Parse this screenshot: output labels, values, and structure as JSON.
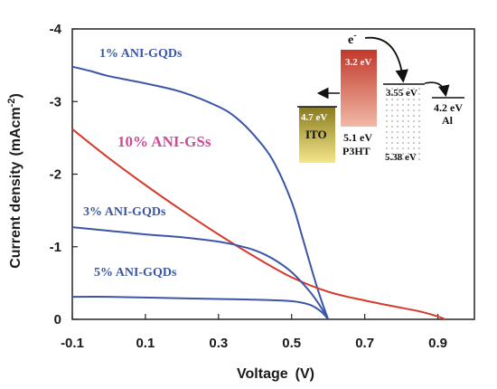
{
  "chart_data": {
    "type": "line",
    "xlabel": "Voltage",
    "xunit": "(V)",
    "ylabel": "Current density",
    "yunit": "(mAcm",
    "yunit_sup": "-2",
    "yunit_close": ")",
    "xlim": [
      -0.1,
      1.0
    ],
    "ylim": [
      0,
      -4
    ],
    "x_ticks": [
      -0.1,
      0.1,
      0.3,
      0.5,
      0.7,
      0.9
    ],
    "x_tick_labels": [
      "-0.1",
      "0.1",
      "0.3",
      "0.5",
      "0.7",
      "0.9"
    ],
    "y_ticks": [
      0,
      -1,
      -2,
      -3,
      -4
    ],
    "y_tick_labels": [
      "0",
      "-1",
      "-2",
      "-3",
      "-4"
    ],
    "series": [
      {
        "name": "1% ANI-GQDs",
        "color": "#3a56a6",
        "x": [
          -0.1,
          -0.05,
          0.0,
          0.1,
          0.2,
          0.3,
          0.35,
          0.4,
          0.45,
          0.5,
          0.53,
          0.56,
          0.58,
          0.6
        ],
        "y": [
          -3.48,
          -3.42,
          -3.35,
          -3.25,
          -3.13,
          -2.93,
          -2.77,
          -2.52,
          -2.18,
          -1.62,
          -1.12,
          -0.6,
          -0.28,
          0.0
        ]
      },
      {
        "name": "10% ANI-GSs",
        "color": "#d63a2c",
        "x": [
          -0.1,
          0.0,
          0.1,
          0.2,
          0.3,
          0.4,
          0.5,
          0.6,
          0.7,
          0.8,
          0.85,
          0.9,
          0.92
        ],
        "y": [
          -2.62,
          -2.22,
          -1.85,
          -1.5,
          -1.17,
          -0.86,
          -0.58,
          -0.38,
          -0.26,
          -0.16,
          -0.11,
          -0.04,
          0.0
        ]
      },
      {
        "name": "3% ANI-GQDs",
        "color": "#3a56a6",
        "x": [
          -0.1,
          0.0,
          0.1,
          0.2,
          0.3,
          0.35,
          0.4,
          0.45,
          0.5,
          0.55,
          0.58,
          0.6
        ],
        "y": [
          -1.27,
          -1.22,
          -1.17,
          -1.13,
          -1.07,
          -1.02,
          -0.95,
          -0.83,
          -0.65,
          -0.38,
          -0.17,
          0.0
        ]
      },
      {
        "name": "5% ANI-GQDs",
        "color": "#3a56a6",
        "x": [
          -0.1,
          0.0,
          0.1,
          0.2,
          0.3,
          0.4,
          0.5,
          0.55,
          0.58,
          0.6
        ],
        "y": [
          -0.31,
          -0.31,
          -0.3,
          -0.29,
          -0.28,
          -0.27,
          -0.25,
          -0.2,
          -0.11,
          0.0
        ]
      }
    ],
    "annotations": [
      {
        "text": "1% ANI-GQDs",
        "color": "#3a56a6"
      },
      {
        "text": "10% ANI-GSs",
        "color": "#d14a9a"
      },
      {
        "text": "3% ANI-GQDs",
        "color": "#3a56a6"
      },
      {
        "text": "5% ANI-GQDs",
        "color": "#3a56a6"
      }
    ]
  },
  "inset": {
    "electron_symbol": "e",
    "electron_sup": "-",
    "p3ht_lumo": "3.2 eV",
    "p3ht_homo": "5.1 eV",
    "p3ht_name": "P3HT",
    "ito_level": "4.7 eV",
    "ito_name": "ITO",
    "acceptor_lumo": "3.55 eV",
    "acceptor_homo": "5.38 eV",
    "al_level": "4.2 eV",
    "al_name": "Al"
  }
}
